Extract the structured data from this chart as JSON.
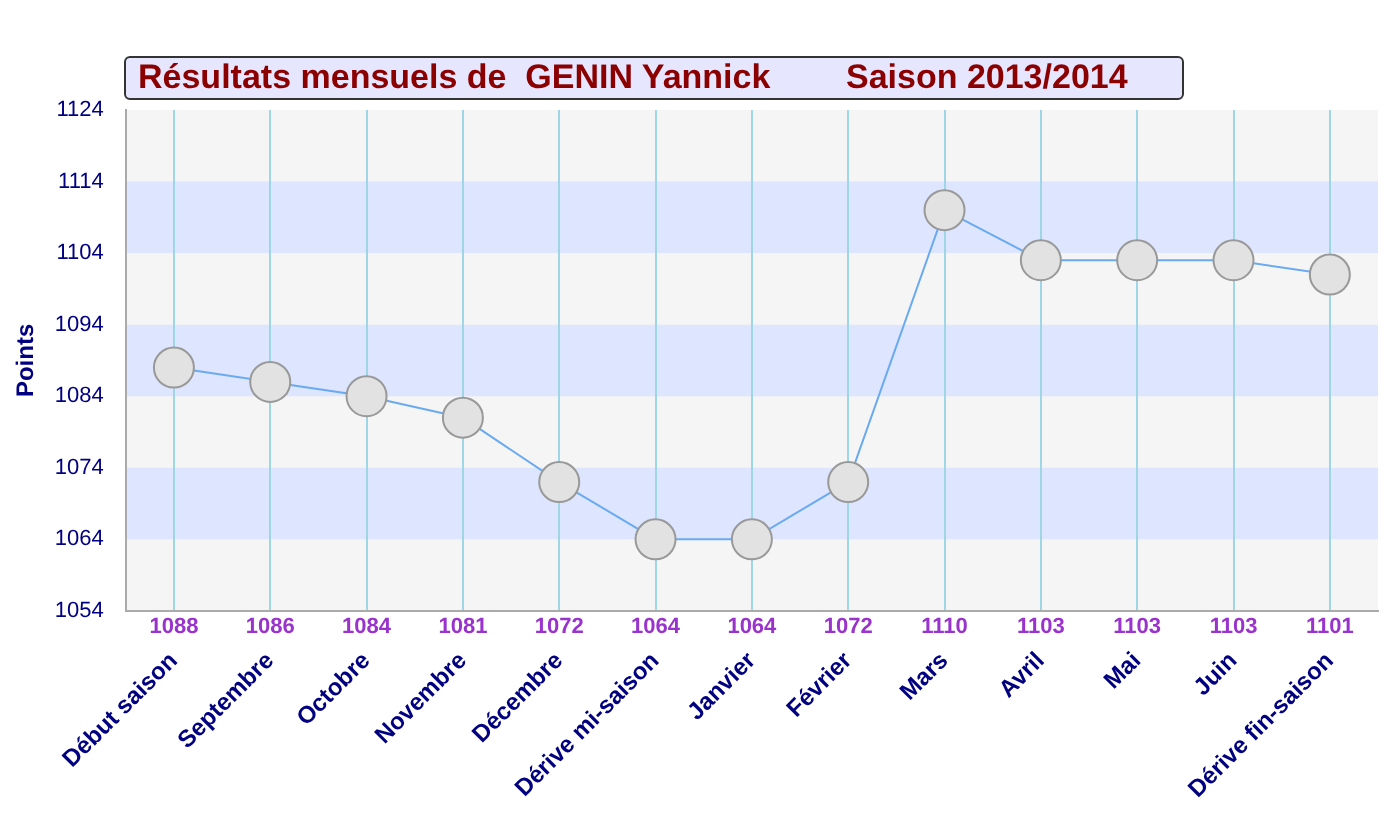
{
  "chart_data": {
    "type": "line",
    "title": "Résultats mensuels de  GENIN Yannick        Saison 2013/2014",
    "ylabel": "Points",
    "categories": [
      "Début saison",
      "Septembre",
      "Octobre",
      "Novembre",
      "Décembre",
      "Dérive mi-saison",
      "Janvier",
      "Février",
      "Mars",
      "Avril",
      "Mai",
      "Juin",
      "Dérive fin-saison"
    ],
    "series": [
      {
        "color": "#6aaaf0",
        "values": [
          1088,
          1086,
          1084,
          1081,
          1072,
          1064,
          1064,
          1072,
          1110,
          1103,
          1103,
          1103,
          1101
        ]
      }
    ],
    "ylim": [
      1054,
      1124
    ],
    "yticks": [
      1054,
      1064,
      1074,
      1084,
      1094,
      1104,
      1114,
      1124
    ],
    "bands": [
      {
        "axis": "y",
        "from": 1064,
        "to": 1074,
        "color": "#dde5ff"
      },
      {
        "axis": "y",
        "from": 1084,
        "to": 1094,
        "color": "#dde5ff"
      },
      {
        "axis": "y",
        "from": 1104,
        "to": 1114,
        "color": "#dde5ff"
      }
    ],
    "grid": "x",
    "legend": false,
    "marker": "circle",
    "line_style": "solid",
    "data_labels": true
  }
}
